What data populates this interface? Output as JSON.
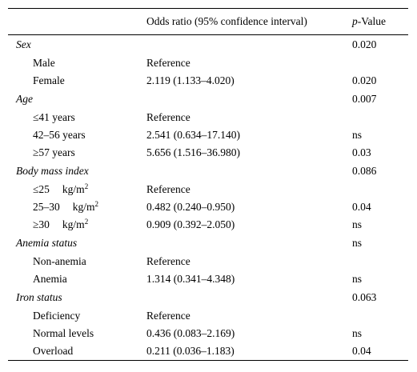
{
  "table": {
    "header": {
      "col1": "",
      "col2": "Odds ratio (95% confidence interval)",
      "col3_italic": "p",
      "col3_rest": "-Value"
    },
    "groups": [
      {
        "label": "Sex",
        "p": "0.020",
        "rows": [
          {
            "label": "Male",
            "or": "Reference",
            "p": ""
          },
          {
            "label": "Female",
            "or": "2.119 (1.133–4.020)",
            "p": "0.020"
          }
        ]
      },
      {
        "label": "Age",
        "p": "0.007",
        "rows": [
          {
            "label": "≤41 years",
            "or": "Reference",
            "p": ""
          },
          {
            "label": "42–56 years",
            "or": "2.541 (0.634–17.140)",
            "p": "ns"
          },
          {
            "label": "≥57 years",
            "or": "5.656 (1.516–36.980)",
            "p": "0.03"
          }
        ]
      },
      {
        "label": "Body mass index",
        "p": "0.086",
        "rows": [
          {
            "label": "≤25",
            "unit": "kg/m",
            "unit_sup": "2",
            "or": "Reference",
            "p": ""
          },
          {
            "label": "25–30",
            "unit": "kg/m",
            "unit_sup": "2",
            "or": "0.482 (0.240–0.950)",
            "p": "0.04"
          },
          {
            "label": "≥30",
            "unit": "kg/m",
            "unit_sup": "2",
            "or": "0.909 (0.392–2.050)",
            "p": "ns"
          }
        ]
      },
      {
        "label": "Anemia status",
        "p": "ns",
        "rows": [
          {
            "label": "Non-anemia",
            "or": "Reference",
            "p": ""
          },
          {
            "label": "Anemia",
            "or": "1.314 (0.341–4.348)",
            "p": "ns"
          }
        ]
      },
      {
        "label": "Iron status",
        "p": "0.063",
        "rows": [
          {
            "label": "Deficiency",
            "or": "Reference",
            "p": ""
          },
          {
            "label": "Normal levels",
            "or": "0.436 (0.083–2.169)",
            "p": "ns"
          },
          {
            "label": "Overload",
            "or": "0.211 (0.036–1.183)",
            "p": "0.04"
          }
        ]
      }
    ]
  }
}
